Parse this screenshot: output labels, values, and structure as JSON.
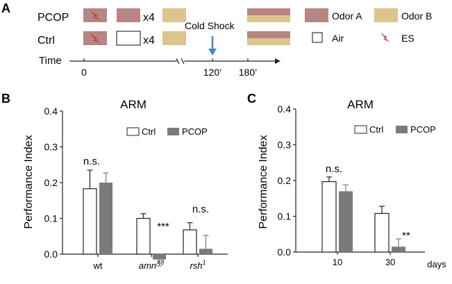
{
  "panel_a": {
    "label": "A",
    "row_pcop": "PCOP",
    "row_ctrl": "Ctrl",
    "repeat_pcop": "x4",
    "repeat_ctrl": "x4",
    "time_label": "Time",
    "ticks": [
      "0",
      "120’",
      "180’"
    ],
    "cold_shock": "Cold Shock",
    "legend": {
      "odor_a": "Odor A",
      "odor_b": "Odor B",
      "air": "Air",
      "es": "ES"
    },
    "colors": {
      "odor_a": "#b78582",
      "odor_b": "#dcc58c",
      "air": "#ffffff",
      "es": "#b33a30",
      "arrow": "#4d83c4"
    }
  },
  "panel_b": {
    "label": "B",
    "title": "ARM",
    "ylabel": "Performance Index",
    "legend_ctrl": "Ctrl",
    "legend_pcop": "PCOP",
    "sig": [
      "n.s.",
      "***",
      "n.s."
    ],
    "cat_labels": [
      {
        "base": "wt",
        "sup": ""
      },
      {
        "base": "amn",
        "sup": "X8"
      },
      {
        "base": "rsh",
        "sup": "1"
      }
    ]
  },
  "panel_c": {
    "label": "C",
    "title": "ARM",
    "ylabel": "Performance Index",
    "legend_ctrl": "Ctrl",
    "legend_pcop": "PCOP",
    "sig": [
      "n.s.",
      "**"
    ],
    "xunit": "days"
  },
  "chart_data": [
    {
      "type": "bar",
      "title": "ARM",
      "ylabel": "Performance Index",
      "xlabel": "",
      "categories": [
        "wt",
        "amnX8",
        "rsh1"
      ],
      "ylim": [
        0,
        0.4
      ],
      "yticks": [
        "0.0",
        "0.1",
        "0.2",
        "0.3",
        "0.4"
      ],
      "series": [
        {
          "name": "Ctrl",
          "values": [
            0.183,
            0.1,
            0.068
          ],
          "errors": [
            0.052,
            0.013,
            0.02
          ],
          "color": "#ffffff"
        },
        {
          "name": "PCOP",
          "values": [
            0.2,
            -0.015,
            0.015
          ],
          "errors": [
            0.027,
            0.018,
            0.037
          ],
          "color": "#7a7a7a"
        }
      ],
      "legend": "top-right"
    },
    {
      "type": "bar",
      "title": "ARM",
      "ylabel": "Performance Index",
      "xlabel": "days",
      "categories": [
        "10",
        "30"
      ],
      "ylim": [
        0,
        0.4
      ],
      "yticks": [
        "0.0",
        "0.1",
        "0.2",
        "0.3",
        "0.4"
      ],
      "series": [
        {
          "name": "Ctrl",
          "values": [
            0.197,
            0.108
          ],
          "errors": [
            0.013,
            0.02
          ],
          "color": "#ffffff"
        },
        {
          "name": "PCOP",
          "values": [
            0.17,
            0.015
          ],
          "errors": [
            0.018,
            0.022
          ],
          "color": "#7a7a7a"
        }
      ],
      "legend": "top-right"
    }
  ]
}
